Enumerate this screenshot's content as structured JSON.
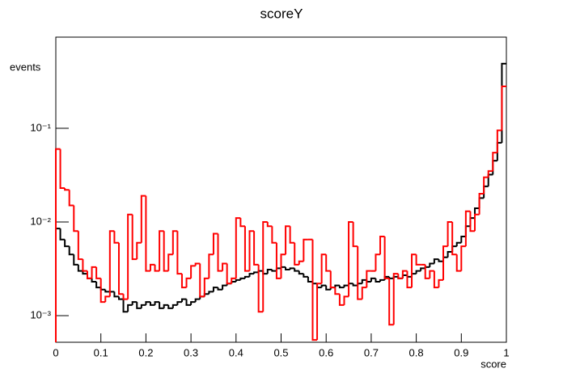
{
  "chart_data": {
    "type": "histogram",
    "title": "scoreY",
    "x_label": "score",
    "y_label": "events",
    "log_y": true,
    "bins": [
      0,
      0.01,
      0.02,
      0.03,
      0.04,
      0.05,
      0.06,
      0.07,
      0.08,
      0.09,
      0.1,
      0.11,
      0.12,
      0.13,
      0.14,
      0.15,
      0.16,
      0.17,
      0.18,
      0.19,
      0.2,
      0.21,
      0.22,
      0.23,
      0.24,
      0.25,
      0.26,
      0.27,
      0.28,
      0.29,
      0.3,
      0.31,
      0.32,
      0.33,
      0.34,
      0.35,
      0.36,
      0.37,
      0.38,
      0.39,
      0.4,
      0.41,
      0.42,
      0.43,
      0.44,
      0.45,
      0.46,
      0.47,
      0.48,
      0.49,
      0.5,
      0.51,
      0.52,
      0.53,
      0.54,
      0.55,
      0.56,
      0.57,
      0.58,
      0.59,
      0.6,
      0.61,
      0.62,
      0.63,
      0.64,
      0.65,
      0.66,
      0.67,
      0.68,
      0.69,
      0.7,
      0.71,
      0.72,
      0.73,
      0.74,
      0.75,
      0.76,
      0.77,
      0.78,
      0.79,
      0.8,
      0.81,
      0.82,
      0.83,
      0.84,
      0.85,
      0.86,
      0.87,
      0.88,
      0.89,
      0.9,
      0.91,
      0.92,
      0.93,
      0.94,
      0.95,
      0.96,
      0.97,
      0.98,
      0.99,
      1
    ],
    "series": [
      {
        "color": "#000000",
        "values": [
          0.0085,
          0.0065,
          0.0055,
          0.0045,
          0.0035,
          0.003,
          0.0028,
          0.0025,
          0.0023,
          0.002,
          0.0019,
          0.0018,
          0.0018,
          0.0016,
          0.0015,
          0.0011,
          0.0013,
          0.0014,
          0.0012,
          0.0013,
          0.0014,
          0.0013,
          0.0014,
          0.0012,
          0.0013,
          0.0012,
          0.0013,
          0.0014,
          0.0015,
          0.0013,
          0.0014,
          0.0015,
          0.0016,
          0.0017,
          0.0018,
          0.002,
          0.0019,
          0.0021,
          0.0022,
          0.0023,
          0.0024,
          0.0025,
          0.0026,
          0.0028,
          0.0029,
          0.003,
          0.0028,
          0.0031,
          0.003,
          0.0032,
          0.0033,
          0.0031,
          0.0032,
          0.003,
          0.0028,
          0.0026,
          0.0023,
          0.0022,
          0.002,
          0.0021,
          0.0019,
          0.002,
          0.0021,
          0.002,
          0.0021,
          0.0022,
          0.0021,
          0.0022,
          0.0024,
          0.0023,
          0.0025,
          0.0023,
          0.0024,
          0.0026,
          0.0025,
          0.0026,
          0.0025,
          0.0027,
          0.0026,
          0.0028,
          0.003,
          0.0032,
          0.0033,
          0.0036,
          0.004,
          0.0038,
          0.0042,
          0.0048,
          0.0055,
          0.006,
          0.007,
          0.009,
          0.011,
          0.014,
          0.018,
          0.024,
          0.032,
          0.045,
          0.07,
          0.49
        ]
      },
      {
        "color": "#ff0000",
        "values": [
          0.06,
          0.023,
          0.022,
          0.015,
          0.008,
          0.004,
          0.003,
          0.0025,
          0.0033,
          0.0025,
          0.0014,
          0.0016,
          0.008,
          0.006,
          0.0017,
          0.0015,
          0.012,
          0.004,
          0.006,
          0.019,
          0.003,
          0.0035,
          0.003,
          0.008,
          0.003,
          0.0045,
          0.008,
          0.0028,
          0.002,
          0.0025,
          0.0034,
          0.0036,
          0.0016,
          0.0025,
          0.0045,
          0.0075,
          0.003,
          0.0036,
          0.0022,
          0.0025,
          0.011,
          0.009,
          0.003,
          0.008,
          0.0035,
          0.0011,
          0.01,
          0.009,
          0.006,
          0.0025,
          0.0045,
          0.009,
          0.006,
          0.0035,
          0.0038,
          0.0065,
          0.0065,
          0.00055,
          0.0022,
          0.0045,
          0.003,
          0.002,
          0.0017,
          0.0013,
          0.0016,
          0.01,
          0.0055,
          0.0015,
          0.002,
          0.003,
          0.003,
          0.0045,
          0.007,
          0.0025,
          0.0008,
          0.0028,
          0.0025,
          0.003,
          0.002,
          0.0045,
          0.0035,
          0.0035,
          0.0025,
          0.003,
          0.002,
          0.0024,
          0.0055,
          0.01,
          0.0045,
          0.003,
          0.0055,
          0.013,
          0.008,
          0.012,
          0.02,
          0.03,
          0.035,
          0.055,
          0.095,
          0.28
        ]
      }
    ],
    "xlim": [
      0,
      1
    ],
    "ylim": [
      0.00052,
      0.94
    ],
    "xticks": [
      0,
      0.1,
      0.2,
      0.3,
      0.4,
      0.5,
      0.6,
      0.7,
      0.8,
      0.9,
      1
    ],
    "yticks": [
      {
        "value": 0.1,
        "label": "10⁻¹"
      },
      {
        "value": 0.01,
        "label": "10⁻²"
      },
      {
        "value": 0.001,
        "label": "10⁻³"
      }
    ]
  }
}
